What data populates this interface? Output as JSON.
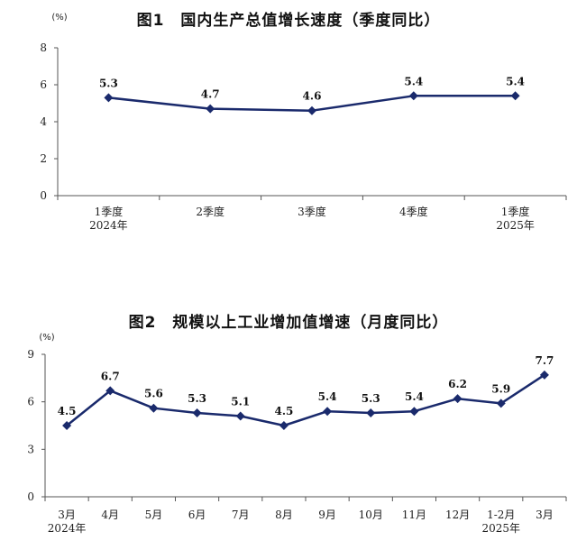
{
  "chart_data": [
    {
      "type": "line",
      "title": "图1　国内生产总值增长速度（季度同比）",
      "unit": "(%)",
      "categories": [
        [
          "1季度",
          "2024年"
        ],
        [
          "2季度"
        ],
        [
          "3季度"
        ],
        [
          "4季度"
        ],
        [
          "1季度",
          "2025年"
        ]
      ],
      "values": [
        5.3,
        4.7,
        4.6,
        5.4,
        5.4
      ],
      "data_labels": [
        "5.3",
        "4.7",
        "4.6",
        "5.4",
        "5.4"
      ],
      "yticks": [
        "0",
        "2",
        "4",
        "6",
        "8"
      ],
      "ylim": [
        0,
        8
      ],
      "grid": false,
      "line_color": "#1a2a6c"
    },
    {
      "type": "line",
      "title": "图2　规模以上工业增加值增速（月度同比）",
      "unit": "(%)",
      "categories": [
        [
          "3月",
          "2024年"
        ],
        [
          "4月"
        ],
        [
          "5月"
        ],
        [
          "6月"
        ],
        [
          "7月"
        ],
        [
          "8月"
        ],
        [
          "9月"
        ],
        [
          "10月"
        ],
        [
          "11月"
        ],
        [
          "12月"
        ],
        [
          "1-2月",
          "2025年"
        ],
        [
          "3月"
        ]
      ],
      "values": [
        4.5,
        6.7,
        5.6,
        5.3,
        5.1,
        4.5,
        5.4,
        5.3,
        5.4,
        6.2,
        5.9,
        7.7
      ],
      "data_labels": [
        "4.5",
        "6.7",
        "5.6",
        "5.3",
        "5.1",
        "4.5",
        "5.4",
        "5.3",
        "5.4",
        "6.2",
        "5.9",
        "7.7"
      ],
      "yticks": [
        "0",
        "3",
        "6",
        "9"
      ],
      "ylim": [
        0,
        9
      ],
      "grid": false,
      "line_color": "#1a2a6c"
    }
  ]
}
